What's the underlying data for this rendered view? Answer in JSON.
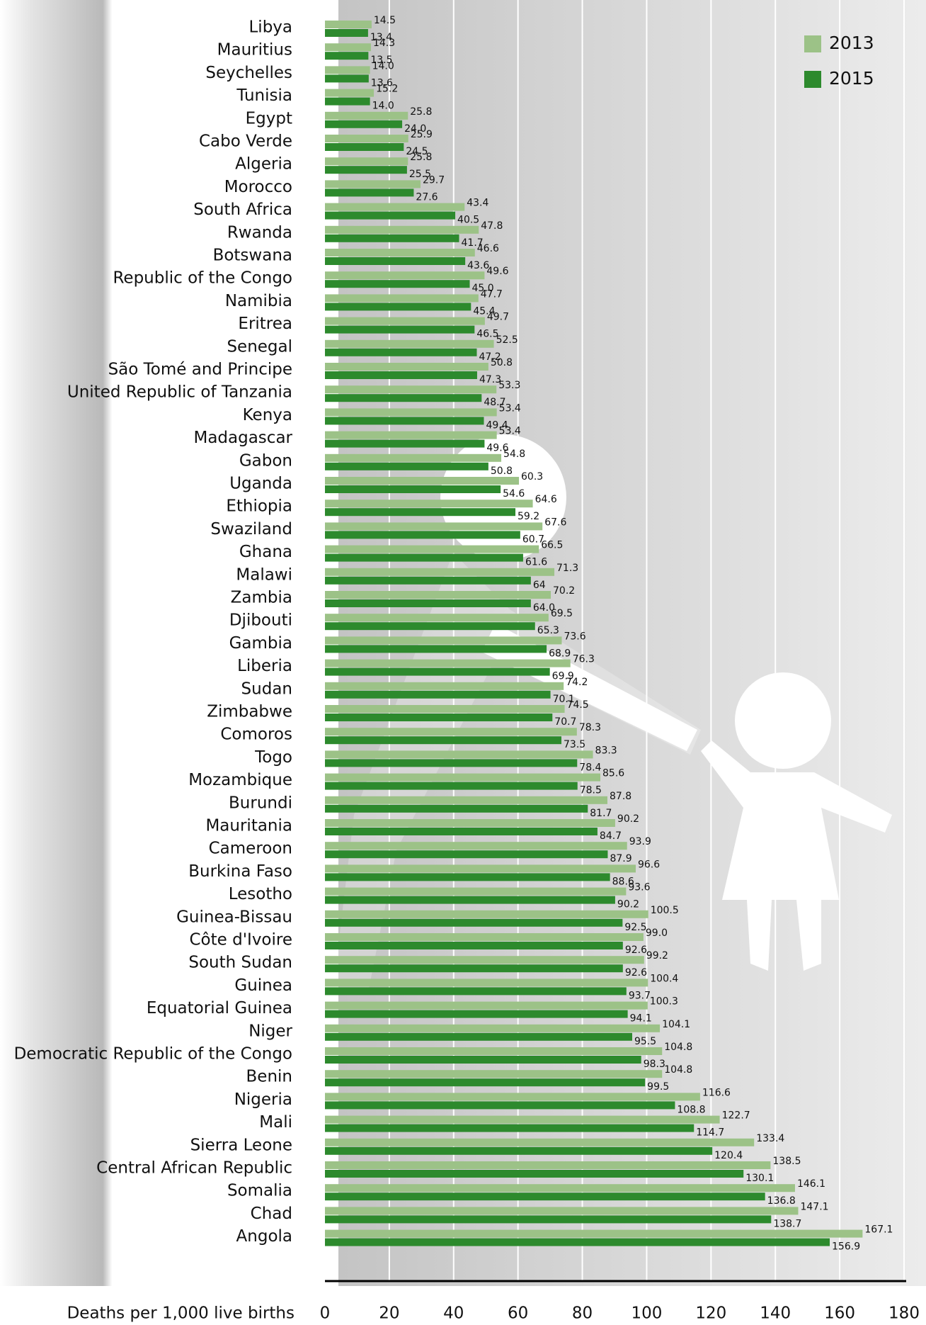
{
  "chart_data": {
    "type": "bar",
    "orientation": "horizontal",
    "x_label": "Deaths per 1,000 live births",
    "categories": [
      "Libya",
      "Mauritius",
      "Seychelles",
      "Tunisia",
      "Egypt",
      "Cabo Verde",
      "Algeria",
      "Morocco",
      "South Africa",
      "Rwanda",
      "Botswana",
      "Republic of the Congo",
      "Namibia",
      "Eritrea",
      "Senegal",
      "São Tomé and Principe",
      "United Republic of Tanzania",
      "Kenya",
      "Madagascar",
      "Gabon",
      "Uganda",
      "Ethiopia",
      "Swaziland",
      "Ghana",
      "Malawi",
      "Zambia",
      "Djibouti",
      "Gambia",
      "Liberia",
      "Sudan",
      "Zimbabwe",
      "Comoros",
      "Togo",
      "Mozambique",
      "Burundi",
      "Mauritania",
      "Cameroon",
      "Burkina Faso",
      "Lesotho",
      "Guinea-Bissau",
      "Côte d'Ivoire",
      "South Sudan",
      "Guinea",
      "Equatorial Guinea",
      "Niger",
      "Democratic Republic of the Congo",
      "Benin",
      "Nigeria",
      "Mali",
      "Sierra Leone",
      "Central African Republic",
      "Somalia",
      "Chad",
      "Angola"
    ],
    "series": [
      {
        "name": "2013",
        "color": "#9cc287",
        "values": [
          14.5,
          14.3,
          14.0,
          15.2,
          25.8,
          25.9,
          25.8,
          29.7,
          43.4,
          47.8,
          46.6,
          49.6,
          47.7,
          49.7,
          52.5,
          50.8,
          53.3,
          53.4,
          53.4,
          54.8,
          60.3,
          64.6,
          67.6,
          66.5,
          71.3,
          70.2,
          69.5,
          73.6,
          76.3,
          74.2,
          74.5,
          78.3,
          83.3,
          85.6,
          87.8,
          90.2,
          93.9,
          96.6,
          93.6,
          100.5,
          99.0,
          99.2,
          100.4,
          100.3,
          104.1,
          104.8,
          104.8,
          116.6,
          122.7,
          133.4,
          138.5,
          146.1,
          147.1,
          167.1
        ],
        "value_labels": [
          "14.5",
          "14.3",
          "14.0",
          "15.2",
          "25.8",
          "25.9",
          "25.8",
          "29.7",
          "43.4",
          "47.8",
          "46.6",
          "49.6",
          "47.7",
          "49.7",
          "52.5",
          "50.8",
          "53.3",
          "53.4",
          "53.4",
          "54.8",
          "60.3",
          "64.6",
          "67.6",
          "66.5",
          "71.3",
          "70.2",
          "69.5",
          "73.6",
          "76.3",
          "74.2",
          "74.5",
          "78.3",
          "83.3",
          "85.6",
          "87.8",
          "90.2",
          "93.9",
          "96.6",
          "93.6",
          "100.5",
          "99.0",
          "99.2",
          "100.4",
          "100.3",
          "104.1",
          "104.8",
          "104.8",
          "116.6",
          "122.7",
          "133.4",
          "138.5",
          "146.1",
          "147.1",
          "167.1"
        ]
      },
      {
        "name": "2015",
        "color": "#2d8a2d",
        "values": [
          13.4,
          13.5,
          13.6,
          14.0,
          24.0,
          24.5,
          25.5,
          27.6,
          40.5,
          41.7,
          43.6,
          45.0,
          45.4,
          46.5,
          47.2,
          47.3,
          48.7,
          49.4,
          49.6,
          50.8,
          54.6,
          59.2,
          60.7,
          61.6,
          64,
          64.0,
          65.3,
          68.9,
          69.9,
          70.1,
          70.7,
          73.5,
          78.4,
          78.5,
          81.7,
          84.7,
          87.9,
          88.6,
          90.2,
          92.5,
          92.6,
          92.6,
          93.7,
          94.1,
          95.5,
          98.3,
          99.5,
          108.8,
          114.7,
          120.4,
          130.1,
          136.8,
          138.7,
          156.9
        ],
        "value_labels": [
          "13.4",
          "13.5",
          "13.6",
          "14.0",
          "24.0",
          "24.5",
          "25.5",
          "27.6",
          "40.5",
          "41.7",
          "43.6",
          "45.0",
          "45.4",
          "46.5",
          "47.2",
          "47.3",
          "48.7",
          "49.4",
          "49.6",
          "50.8",
          "54.6",
          "59.2",
          "60.7",
          "61.6",
          "64",
          "64.0",
          "65.3",
          "68.9",
          "69.9",
          "70.1",
          "70.7",
          "73.5",
          "78.4",
          "78.5",
          "81.7",
          "84.7",
          "87.9",
          "88.6",
          "90.2",
          "92.5",
          "92.6",
          "92.6",
          "93.7",
          "94.1",
          "95.5",
          "98.3",
          "99.5",
          "108.8",
          "114.7",
          "120.4",
          "130.1",
          "136.8",
          "138.7",
          "156.9"
        ]
      }
    ],
    "xlim": [
      0,
      180
    ],
    "xticks": [
      0,
      20,
      40,
      60,
      80,
      100,
      120,
      140,
      160,
      180
    ],
    "grid": true,
    "legend": "top-right"
  }
}
